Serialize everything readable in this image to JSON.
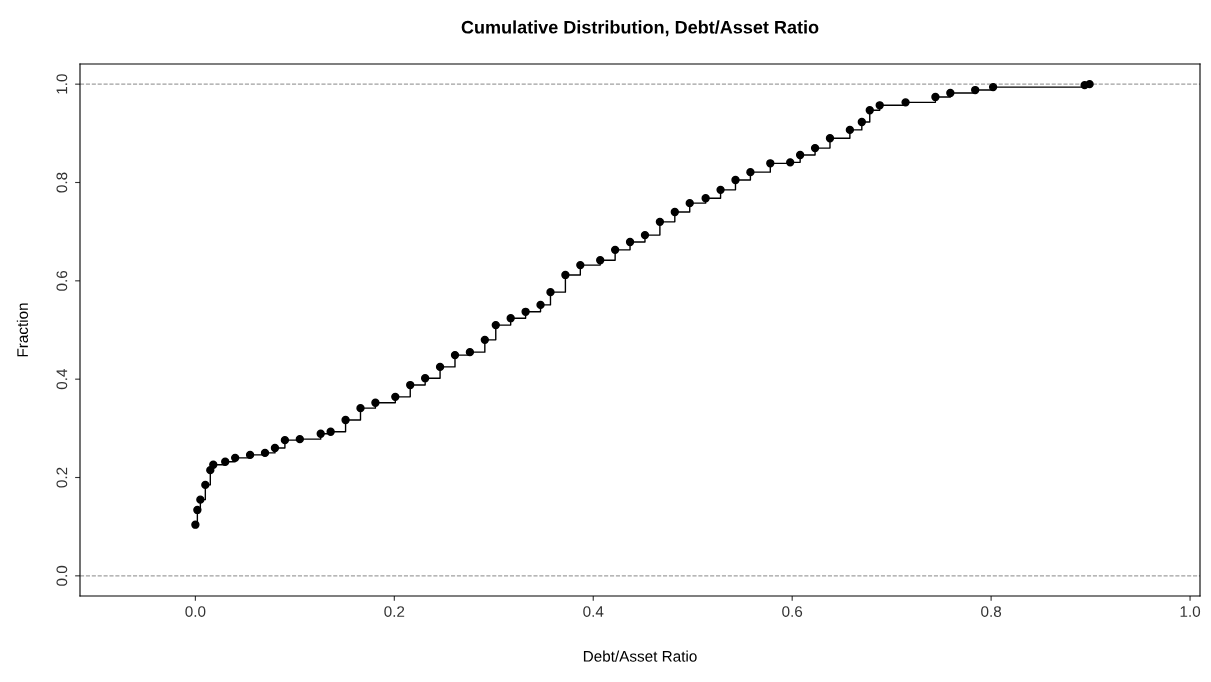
{
  "chart_data": {
    "type": "step",
    "title": "Cumulative Distribution, Debt/Asset Ratio",
    "xlabel": "Debt/Asset Ratio",
    "ylabel": "Fraction",
    "xlim": [
      -0.116,
      1.01
    ],
    "ylim": [
      -0.041,
      1.041
    ],
    "xticks": [
      {
        "value": 0,
        "label": "0.0"
      },
      0.2,
      0.4,
      0.6,
      0.8,
      {
        "value": 1,
        "label": "1.0"
      }
    ],
    "yticks": [
      {
        "value": 0,
        "label": "0.0"
      },
      0.2,
      0.4,
      0.6,
      0.8,
      {
        "value": 1,
        "label": "1.0"
      }
    ],
    "grid": false,
    "legend": false,
    "marker": "circle",
    "line_style": "solid",
    "ref_lines": [
      {
        "axis": "y",
        "value": 0,
        "color": "#a0a0a0",
        "line_style": "dashed"
      },
      {
        "axis": "y",
        "value": 1,
        "color": "#a0a0a0",
        "line_style": "dashed"
      }
    ],
    "series": [
      {
        "color": "#000000",
        "x": [
          0.0,
          0.002,
          0.005,
          0.01,
          0.015,
          0.018,
          0.03,
          0.04,
          0.055,
          0.07,
          0.08,
          0.09,
          0.105,
          0.126,
          0.136,
          0.151,
          0.166,
          0.181,
          0.201,
          0.216,
          0.231,
          0.246,
          0.261,
          0.276,
          0.291,
          0.302,
          0.317,
          0.332,
          0.347,
          0.357,
          0.372,
          0.387,
          0.407,
          0.422,
          0.437,
          0.452,
          0.467,
          0.482,
          0.497,
          0.513,
          0.528,
          0.543,
          0.558,
          0.578,
          0.598,
          0.608,
          0.623,
          0.638,
          0.658,
          0.67,
          0.678,
          0.688,
          0.714,
          0.744,
          0.759,
          0.784,
          0.802,
          0.894,
          0.899
        ],
        "values": [
          0.104,
          0.134,
          0.155,
          0.185,
          0.215,
          0.226,
          0.232,
          0.24,
          0.246,
          0.25,
          0.26,
          0.276,
          0.278,
          0.289,
          0.293,
          0.317,
          0.341,
          0.352,
          0.364,
          0.388,
          0.402,
          0.425,
          0.449,
          0.455,
          0.48,
          0.51,
          0.524,
          0.537,
          0.551,
          0.577,
          0.612,
          0.632,
          0.642,
          0.663,
          0.679,
          0.693,
          0.72,
          0.74,
          0.758,
          0.768,
          0.785,
          0.805,
          0.821,
          0.839,
          0.841,
          0.856,
          0.87,
          0.89,
          0.907,
          0.923,
          0.947,
          0.957,
          0.963,
          0.974,
          0.982,
          0.988,
          0.994,
          0.998,
          1.0
        ]
      }
    ]
  }
}
